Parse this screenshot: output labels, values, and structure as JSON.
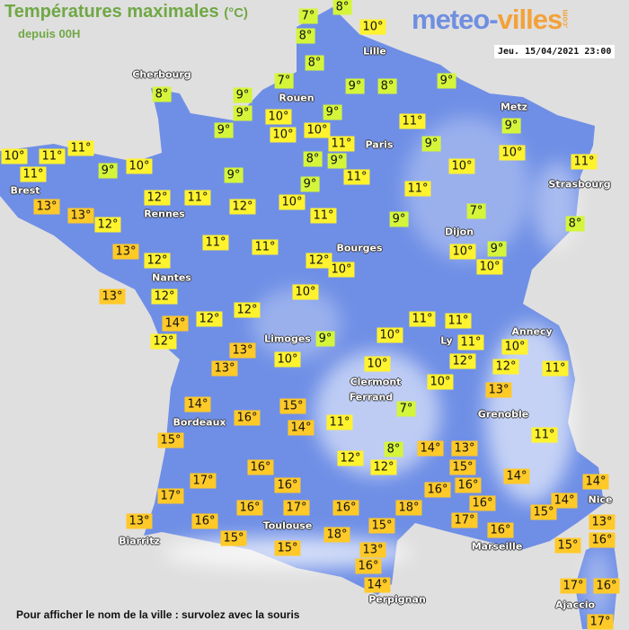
{
  "header": {
    "title": "Températures maximales",
    "unit": "(°C)",
    "subtitle": "depuis 00H",
    "logo": {
      "part1": "meteo-",
      "part2": "villes",
      "suffix": ".com"
    },
    "datetime": "Jeu. 15/04/2021 23:00"
  },
  "colors": {
    "land": "#6f8fe6",
    "cold_label": "#d4f53a",
    "mild_label": "#fff22e",
    "warm_label": "#ffc928",
    "sea": "#e0dfdf"
  },
  "cities": [
    "Cherbourg",
    "Rouen",
    "Lille",
    "Paris",
    "Metz",
    "Strasbourg",
    "Brest",
    "Rennes",
    "Nantes",
    "Bourges",
    "Dijon",
    "Limoges",
    "Ly",
    "Annecy",
    "Clermont",
    "Ferrand",
    "Grenoble",
    "Bordeaux",
    "Toulouse",
    "Biarritz",
    "Marseille",
    "Nice",
    "Perpignan",
    "Ajaccio"
  ],
  "temperatures": [
    "7°",
    "8°",
    "8°",
    "10°",
    "8°",
    "7°",
    "9°",
    "9°",
    "9°",
    "10°",
    "10°",
    "9°",
    "8°",
    "9°",
    "9°",
    "10°",
    "11°",
    "11°",
    "9°",
    "9°",
    "10°",
    "8°",
    "9°",
    "11°",
    "10°",
    "11°",
    "9°",
    "11°",
    "7°",
    "9°",
    "8°",
    "10°",
    "9°",
    "10°",
    "10°",
    "11°",
    "12°",
    "9°",
    "12°",
    "11°",
    "9°",
    "10°",
    "11°",
    "10°",
    "11°",
    "11°",
    "8°",
    "13°",
    "13°",
    "12°",
    "13°",
    "12°",
    "11°",
    "11°",
    "12°",
    "10°",
    "13°",
    "12°",
    "12°",
    "10°",
    "12°",
    "14°",
    "12°",
    "13°",
    "13°",
    "10°",
    "9°",
    "14°",
    "16°",
    "15°",
    "15°",
    "14°",
    "16°",
    "16°",
    "17°",
    "17°",
    "16°",
    "17°",
    "13°",
    "16°",
    "15°",
    "15°",
    "11°",
    "11°",
    "10°",
    "11°",
    "12°",
    "10°",
    "12°",
    "11°",
    "10°",
    "10°",
    "13°",
    "7°",
    "11°",
    "11°",
    "8°",
    "12°",
    "12°",
    "14°",
    "13°",
    "15°",
    "14°",
    "16°",
    "16°",
    "14°",
    "14°",
    "16°",
    "16°",
    "18°",
    "17°",
    "16°",
    "15°",
    "13°",
    "18°",
    "15°",
    "13°",
    "16°",
    "14°",
    "15°",
    "16°",
    "17°",
    "16°",
    "17°"
  ],
  "footer": "Pour afficher le nom de la ville : survolez avec la souris"
}
